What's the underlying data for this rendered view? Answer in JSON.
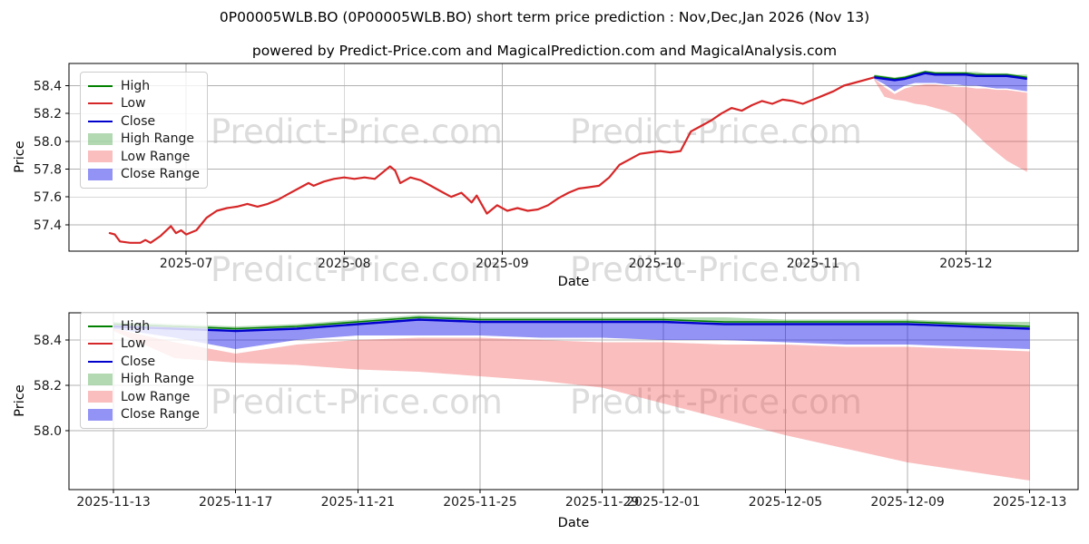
{
  "title": "0P00005WLB.BO (0P00005WLB.BO) short term price prediction : Nov,Dec,Jan 2026 (Nov 13)",
  "powered_by": "powered by Predict-Price.com and MagicalPrediction.com and MagicalAnalysis.com",
  "watermark_text": "Predict-Price.com",
  "colors": {
    "high": "#008000",
    "low": "#d62728",
    "close": "#0000cd",
    "high_range": "rgba(0,128,0,0.30)",
    "low_range": "rgba(240,70,70,0.35)",
    "close_range": "rgba(25,25,235,0.47)",
    "grid": "#b0b0b0",
    "spine": "#000000",
    "tick_text": "#1a1a1a",
    "watermark": "#dcdcdc"
  },
  "legend_items": [
    {
      "label": "High",
      "type": "line",
      "color_key": "high"
    },
    {
      "label": "Low",
      "type": "line",
      "color_key": "low"
    },
    {
      "label": "Close",
      "type": "line",
      "color_key": "close"
    },
    {
      "label": "High Range",
      "type": "patch",
      "color_key": "high_range"
    },
    {
      "label": "Low Range",
      "type": "patch",
      "color_key": "low_range"
    },
    {
      "label": "Close Range",
      "type": "patch",
      "color_key": "close_range"
    }
  ],
  "chart_data": [
    {
      "type": "line",
      "name": "history-with-prediction",
      "xlabel": "Date",
      "ylabel": "Price",
      "grid": true,
      "legend_position": "upper left",
      "xlim": [
        "2025-06-08",
        "2025-12-23"
      ],
      "ylim": [
        57.21,
        58.56
      ],
      "xticks": [
        {
          "v": "2025-07-01",
          "label": "2025-07"
        },
        {
          "v": "2025-08-01",
          "label": "2025-08"
        },
        {
          "v": "2025-09-01",
          "label": "2025-09"
        },
        {
          "v": "2025-10-01",
          "label": "2025-10"
        },
        {
          "v": "2025-11-01",
          "label": "2025-11"
        },
        {
          "v": "2025-12-01",
          "label": "2025-12"
        }
      ],
      "yticks": [
        {
          "v": 57.4,
          "label": "57.4"
        },
        {
          "v": 57.6,
          "label": "57.6"
        },
        {
          "v": 57.8,
          "label": "57.8"
        },
        {
          "v": 58.0,
          "label": "58.0"
        },
        {
          "v": 58.2,
          "label": "58.2"
        },
        {
          "v": 58.4,
          "label": "58.4"
        }
      ],
      "series": [
        {
          "name": "Low",
          "color_key": "low",
          "points": [
            [
              "2025-06-16",
              57.34
            ],
            [
              "2025-06-17",
              57.33
            ],
            [
              "2025-06-18",
              57.28
            ],
            [
              "2025-06-20",
              57.27
            ],
            [
              "2025-06-22",
              57.27
            ],
            [
              "2025-06-23",
              57.29
            ],
            [
              "2025-06-24",
              57.27
            ],
            [
              "2025-06-26",
              57.32
            ],
            [
              "2025-06-28",
              57.39
            ],
            [
              "2025-06-29",
              57.34
            ],
            [
              "2025-06-30",
              57.36
            ],
            [
              "2025-07-01",
              57.33
            ],
            [
              "2025-07-03",
              57.36
            ],
            [
              "2025-07-05",
              57.45
            ],
            [
              "2025-07-07",
              57.5
            ],
            [
              "2025-07-09",
              57.52
            ],
            [
              "2025-07-11",
              57.53
            ],
            [
              "2025-07-13",
              57.55
            ],
            [
              "2025-07-15",
              57.53
            ],
            [
              "2025-07-17",
              57.55
            ],
            [
              "2025-07-19",
              57.58
            ],
            [
              "2025-07-21",
              57.62
            ],
            [
              "2025-07-23",
              57.66
            ],
            [
              "2025-07-25",
              57.7
            ],
            [
              "2025-07-26",
              57.68
            ],
            [
              "2025-07-28",
              57.71
            ],
            [
              "2025-07-30",
              57.73
            ],
            [
              "2025-08-01",
              57.74
            ],
            [
              "2025-08-03",
              57.73
            ],
            [
              "2025-08-05",
              57.74
            ],
            [
              "2025-08-07",
              57.73
            ],
            [
              "2025-08-08",
              57.76
            ],
            [
              "2025-08-10",
              57.82
            ],
            [
              "2025-08-11",
              57.79
            ],
            [
              "2025-08-12",
              57.7
            ],
            [
              "2025-08-14",
              57.74
            ],
            [
              "2025-08-16",
              57.72
            ],
            [
              "2025-08-18",
              57.68
            ],
            [
              "2025-08-20",
              57.64
            ],
            [
              "2025-08-22",
              57.6
            ],
            [
              "2025-08-24",
              57.63
            ],
            [
              "2025-08-26",
              57.56
            ],
            [
              "2025-08-27",
              57.61
            ],
            [
              "2025-08-29",
              57.48
            ],
            [
              "2025-08-31",
              57.54
            ],
            [
              "2025-09-02",
              57.5
            ],
            [
              "2025-09-04",
              57.52
            ],
            [
              "2025-09-06",
              57.5
            ],
            [
              "2025-09-08",
              57.51
            ],
            [
              "2025-09-10",
              57.54
            ],
            [
              "2025-09-12",
              57.59
            ],
            [
              "2025-09-14",
              57.63
            ],
            [
              "2025-09-16",
              57.66
            ],
            [
              "2025-09-18",
              57.67
            ],
            [
              "2025-09-20",
              57.68
            ],
            [
              "2025-09-22",
              57.74
            ],
            [
              "2025-09-24",
              57.83
            ],
            [
              "2025-09-26",
              57.87
            ],
            [
              "2025-09-28",
              57.91
            ],
            [
              "2025-09-30",
              57.92
            ],
            [
              "2025-10-02",
              57.93
            ],
            [
              "2025-10-04",
              57.92
            ],
            [
              "2025-10-06",
              57.93
            ],
            [
              "2025-10-08",
              58.07
            ],
            [
              "2025-10-10",
              58.11
            ],
            [
              "2025-10-12",
              58.15
            ],
            [
              "2025-10-14",
              58.2
            ],
            [
              "2025-10-16",
              58.24
            ],
            [
              "2025-10-18",
              58.22
            ],
            [
              "2025-10-20",
              58.26
            ],
            [
              "2025-10-22",
              58.29
            ],
            [
              "2025-10-24",
              58.27
            ],
            [
              "2025-10-26",
              58.3
            ],
            [
              "2025-10-28",
              58.29
            ],
            [
              "2025-10-30",
              58.27
            ],
            [
              "2025-11-01",
              58.3
            ],
            [
              "2025-11-03",
              58.33
            ],
            [
              "2025-11-05",
              58.36
            ],
            [
              "2025-11-07",
              58.4
            ],
            [
              "2025-11-09",
              58.42
            ],
            [
              "2025-11-11",
              58.44
            ],
            [
              "2025-11-13",
              58.46
            ]
          ]
        }
      ],
      "shows_prediction_overlay": true
    },
    {
      "type": "area",
      "name": "prediction-detail",
      "xlabel": "Date",
      "ylabel": "Price",
      "grid": true,
      "legend_position": "upper left",
      "xlim": [
        "2025-11-11T13:00:00",
        "2025-12-14T14:00:00"
      ],
      "ylim": [
        57.74,
        58.52
      ],
      "xticks": [
        {
          "v": "2025-11-13",
          "label": "2025-11-13"
        },
        {
          "v": "2025-11-17",
          "label": "2025-11-17"
        },
        {
          "v": "2025-11-21",
          "label": "2025-11-21"
        },
        {
          "v": "2025-11-25",
          "label": "2025-11-25"
        },
        {
          "v": "2025-11-29",
          "label": "2025-11-29"
        },
        {
          "v": "2025-12-01",
          "label": "2025-12-01"
        },
        {
          "v": "2025-12-05",
          "label": "2025-12-05"
        },
        {
          "v": "2025-12-09",
          "label": "2025-12-09"
        },
        {
          "v": "2025-12-13",
          "label": "2025-12-13"
        }
      ],
      "yticks": [
        {
          "v": 58.0,
          "label": "58.0"
        },
        {
          "v": 58.2,
          "label": "58.2"
        },
        {
          "v": 58.4,
          "label": "58.4"
        }
      ],
      "prediction": {
        "dates": [
          "2025-11-13",
          "2025-11-15",
          "2025-11-17",
          "2025-11-19",
          "2025-11-21",
          "2025-11-23",
          "2025-11-25",
          "2025-11-27",
          "2025-11-29",
          "2025-12-01",
          "2025-12-03",
          "2025-12-05",
          "2025-12-07",
          "2025-12-09",
          "2025-12-11",
          "2025-12-13"
        ],
        "high": [
          58.47,
          58.46,
          58.45,
          58.46,
          58.48,
          58.5,
          58.49,
          58.49,
          58.49,
          58.49,
          58.48,
          58.48,
          58.48,
          58.48,
          58.47,
          58.46
        ],
        "high_range_top": [
          58.48,
          58.47,
          58.46,
          58.47,
          58.49,
          58.51,
          58.5,
          58.5,
          58.5,
          58.5,
          58.5,
          58.49,
          58.49,
          58.49,
          58.48,
          58.48
        ],
        "close": [
          58.46,
          58.45,
          58.44,
          58.45,
          58.47,
          58.49,
          58.48,
          58.48,
          58.48,
          58.48,
          58.47,
          58.47,
          58.47,
          58.47,
          58.46,
          58.45
        ],
        "close_range_bottom": [
          58.45,
          58.41,
          58.36,
          58.4,
          58.42,
          58.42,
          58.42,
          58.41,
          58.41,
          58.4,
          58.4,
          58.39,
          58.38,
          58.38,
          58.37,
          58.36
        ],
        "low_range_top": [
          58.45,
          58.39,
          58.34,
          58.38,
          58.4,
          58.41,
          58.41,
          58.4,
          58.39,
          58.39,
          58.38,
          58.38,
          58.37,
          58.37,
          58.36,
          58.35
        ],
        "low_range_bottom": [
          58.44,
          58.32,
          58.3,
          58.29,
          58.27,
          58.26,
          58.24,
          58.22,
          58.19,
          58.12,
          58.05,
          57.98,
          57.92,
          57.86,
          57.82,
          57.78
        ]
      }
    }
  ]
}
